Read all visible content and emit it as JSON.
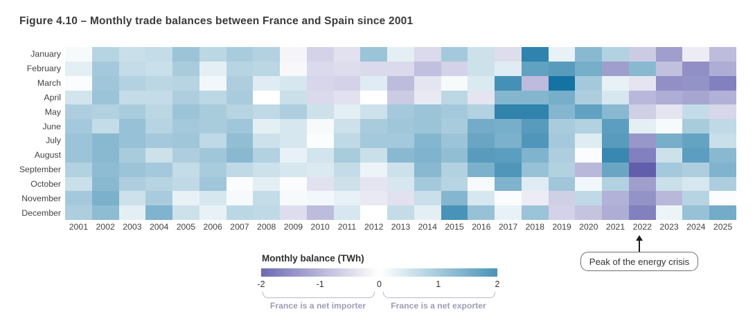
{
  "figure_title": "Figure 4.10 – Monthly trade balances between France and Spain since 2001",
  "legend": {
    "title": "Monthly balance (TWh)",
    "ticks": [
      "-2",
      "-1",
      "0",
      "1",
      "2"
    ],
    "importer_caption": "France is a net importer",
    "exporter_caption": "France is a net exporter"
  },
  "annotation": {
    "label": "Peak of the energy crisis",
    "target_year": "2022"
  },
  "colors": {
    "negative_end": "#6c6ab2",
    "zero": "#ffffff",
    "positive_end": "#4a93b8",
    "label_text": "#414141",
    "caption_text": "#9d9db4"
  },
  "chart_data": {
    "type": "heatmap",
    "title": "Figure 4.10 – Monthly trade balances between France and Spain since 2001",
    "unit": "TWh",
    "legend_title": "Monthly balance (TWh)",
    "colorscale": {
      "min": -2,
      "max": 2,
      "negative_meaning": "France is a net importer",
      "positive_meaning": "France is a net exporter"
    },
    "rows": [
      "January",
      "February",
      "March",
      "April",
      "May",
      "June",
      "July",
      "August",
      "September",
      "October",
      "November",
      "December"
    ],
    "columns": [
      "2001",
      "2002",
      "2003",
      "2004",
      "2005",
      "2006",
      "2007",
      "2008",
      "2009",
      "2010",
      "2011",
      "2012",
      "2013",
      "2014",
      "2015",
      "2016",
      "2017",
      "2018",
      "2019",
      "2020",
      "2021",
      "2022",
      "2023",
      "2024",
      "2025"
    ],
    "values": {
      "January": [
        0.1,
        0.8,
        0.6,
        0.65,
        1.1,
        0.75,
        0.95,
        0.85,
        -0.15,
        -0.6,
        -0.4,
        1.1,
        0.3,
        -0.5,
        1.0,
        0.55,
        -0.45,
        2.3,
        0.25,
        1.3,
        0.85,
        -0.7,
        -1.3,
        -0.25,
        -0.9
      ],
      "February": [
        0.3,
        1.0,
        0.65,
        0.6,
        0.95,
        0.3,
        0.8,
        0.75,
        -0.1,
        -0.5,
        -0.45,
        -0.5,
        -0.5,
        -0.85,
        -0.6,
        0.55,
        0.35,
        1.75,
        1.85,
        1.5,
        -1.3,
        1.3,
        -0.85,
        -1.5,
        -1.1
      ],
      "March": [
        0.05,
        1.05,
        0.85,
        0.75,
        0.8,
        0.15,
        0.9,
        0.35,
        0.45,
        -0.55,
        -0.6,
        0.35,
        -0.9,
        -0.35,
        0.1,
        0.4,
        2.05,
        -0.9,
        2.6,
        1.0,
        0.25,
        -0.35,
        -1.5,
        -1.45,
        -1.7
      ],
      "April": [
        0.5,
        1.1,
        0.65,
        0.65,
        0.9,
        0.75,
        0.95,
        0.0,
        0.6,
        -0.5,
        -0.4,
        0.0,
        -0.7,
        -0.3,
        0.75,
        -0.35,
        1.35,
        1.35,
        1.5,
        0.9,
        0.45,
        -0.95,
        -1.1,
        -1.2,
        -1.05
      ],
      "May": [
        0.9,
        0.85,
        0.95,
        0.75,
        1.1,
        0.95,
        0.8,
        0.7,
        0.9,
        0.55,
        0.3,
        0.55,
        1.0,
        1.1,
        1.0,
        0.85,
        2.3,
        2.3,
        1.35,
        1.75,
        1.3,
        -0.65,
        -0.35,
        0.65,
        -0.55
      ],
      "June": [
        1.0,
        0.65,
        1.15,
        0.8,
        1.0,
        0.95,
        1.05,
        0.3,
        0.45,
        0.1,
        0.55,
        0.95,
        1.05,
        1.1,
        0.95,
        1.55,
        1.5,
        1.85,
        0.95,
        0.85,
        1.8,
        0.3,
        0.1,
        0.95,
        0.7
      ],
      "July": [
        1.1,
        1.3,
        1.15,
        1.0,
        1.05,
        0.7,
        1.2,
        0.55,
        0.45,
        0.05,
        0.7,
        1.0,
        1.0,
        1.35,
        1.1,
        1.65,
        1.45,
        1.95,
        1.0,
        0.35,
        1.85,
        -1.4,
        1.5,
        1.7,
        0.6
      ],
      "August": [
        1.1,
        1.3,
        0.95,
        0.55,
        0.9,
        1.05,
        1.3,
        0.85,
        0.25,
        0.5,
        0.95,
        0.6,
        1.3,
        1.4,
        1.2,
        1.85,
        1.8,
        1.4,
        0.9,
        0.05,
        2.2,
        -1.7,
        0.55,
        1.8,
        1.3
      ],
      "September": [
        0.85,
        1.25,
        1.1,
        1.0,
        0.65,
        0.95,
        0.7,
        0.55,
        0.45,
        0.4,
        0.65,
        0.2,
        0.55,
        1.3,
        0.85,
        1.45,
        1.95,
        1.15,
        0.85,
        -0.95,
        1.65,
        -2.15,
        1.0,
        0.9,
        1.4
      ],
      "October": [
        0.6,
        1.3,
        0.9,
        0.8,
        0.7,
        1.05,
        0.05,
        0.3,
        0.05,
        -0.4,
        0.55,
        -0.35,
        0.45,
        1.0,
        0.8,
        0.1,
        1.4,
        0.35,
        1.05,
        0.15,
        0.85,
        -1.3,
        0.6,
        0.45,
        0.9
      ],
      "November": [
        1.0,
        1.45,
        0.55,
        0.95,
        0.25,
        0.45,
        0.1,
        0.65,
        0.1,
        0.15,
        0.25,
        -0.3,
        -0.4,
        0.6,
        1.35,
        0.45,
        0.05,
        -0.25,
        -0.65,
        0.7,
        -1.05,
        -1.45,
        -0.95,
        0.8,
        0.05
      ],
      "December": [
        0.9,
        1.25,
        0.3,
        1.4,
        0.55,
        0.25,
        0.75,
        0.7,
        -0.45,
        -0.9,
        0.45,
        0.0,
        0.65,
        0.3,
        2.0,
        1.15,
        0.25,
        1.1,
        -0.6,
        -0.8,
        -1.1,
        -1.7,
        0.2,
        1.15,
        1.55
      ]
    }
  }
}
